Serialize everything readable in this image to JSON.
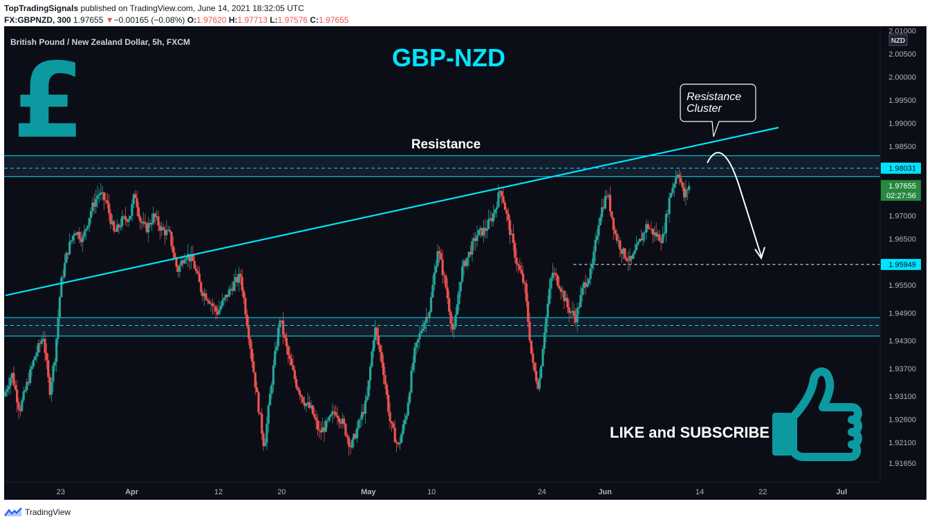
{
  "header": {
    "publisher": "TopTradingSignals",
    "published_text": "published on TradingView.com, June 14, 2021 18:32:05 UTC",
    "symbol": "FX:GBPNZD, 300",
    "last": "1.97655",
    "change_arrow": "▼",
    "change": "−0.00165 (−0.08%)",
    "o_label": "O:",
    "o_val": "1.97620",
    "h_label": "H:",
    "h_val": "1.97713",
    "l_label": "L:",
    "l_val": "1.97576",
    "c_label": "C:",
    "c_val": "1.97655"
  },
  "chart_data": {
    "type": "candlestick",
    "title": "GBP-NZD",
    "subtitle": "British Pound / New Zealand Dollar, 5h, FXCM",
    "currency_badge": "NZD",
    "ylim": [
      1.9125,
      2.011
    ],
    "y_ticks": [
      "2.01000",
      "2.00500",
      "2.00000",
      "1.99500",
      "1.99000",
      "1.98500",
      "1.98031",
      "1.97655",
      "1.97000",
      "1.96500",
      "1.95949",
      "1.95500",
      "1.94900",
      "1.94300",
      "1.93700",
      "1.93100",
      "1.92600",
      "1.92100",
      "1.91650"
    ],
    "y_tick_values": [
      2.01,
      2.005,
      2.0,
      1.995,
      1.99,
      1.985,
      1.98031,
      1.97655,
      1.97,
      1.965,
      1.95949,
      1.955,
      1.949,
      1.943,
      1.937,
      1.931,
      1.926,
      1.921,
      1.9165
    ],
    "x_ticks": [
      "23",
      "Apr",
      "12",
      "20",
      "May",
      "10",
      "24",
      "Jun",
      "14",
      "22",
      "Jul"
    ],
    "x_tick_days": [
      7,
      16,
      27,
      35,
      46,
      54,
      68,
      76,
      88,
      96,
      106
    ],
    "x_range_days": [
      0,
      110
    ],
    "price_path": [
      [
        0.0,
        1.931
      ],
      [
        1.0,
        1.936
      ],
      [
        2.0,
        1.928
      ],
      [
        3.0,
        1.934
      ],
      [
        4.0,
        1.94
      ],
      [
        5.0,
        1.944
      ],
      [
        5.8,
        1.932
      ],
      [
        6.5,
        1.94
      ],
      [
        7.2,
        1.955
      ],
      [
        8.0,
        1.962
      ],
      [
        9.0,
        1.967
      ],
      [
        10.0,
        1.965
      ],
      [
        11.0,
        1.971
      ],
      [
        12.0,
        1.975
      ],
      [
        13.0,
        1.973
      ],
      [
        14.0,
        1.966
      ],
      [
        15.0,
        1.969
      ],
      [
        16.0,
        1.97
      ],
      [
        16.6,
        1.975
      ],
      [
        17.3,
        1.969
      ],
      [
        18.0,
        1.967
      ],
      [
        19.0,
        1.97
      ],
      [
        20.0,
        1.967
      ],
      [
        21.0,
        1.966
      ],
      [
        22.0,
        1.958
      ],
      [
        23.0,
        1.962
      ],
      [
        24.0,
        1.96
      ],
      [
        25.0,
        1.954
      ],
      [
        26.0,
        1.952
      ],
      [
        27.0,
        1.949
      ],
      [
        28.0,
        1.952
      ],
      [
        29.0,
        1.955
      ],
      [
        30.0,
        1.957
      ],
      [
        31.0,
        1.945
      ],
      [
        32.0,
        1.932
      ],
      [
        33.0,
        1.92
      ],
      [
        34.0,
        1.935
      ],
      [
        35.0,
        1.948
      ],
      [
        36.0,
        1.94
      ],
      [
        37.0,
        1.934
      ],
      [
        38.0,
        1.93
      ],
      [
        39.0,
        1.928
      ],
      [
        40.0,
        1.923
      ],
      [
        41.0,
        1.925
      ],
      [
        42.0,
        1.928
      ],
      [
        43.0,
        1.925
      ],
      [
        44.0,
        1.92
      ],
      [
        45.0,
        1.925
      ],
      [
        46.0,
        1.93
      ],
      [
        47.0,
        1.946
      ],
      [
        48.0,
        1.938
      ],
      [
        49.0,
        1.925
      ],
      [
        50.0,
        1.92
      ],
      [
        51.0,
        1.927
      ],
      [
        52.0,
        1.94
      ],
      [
        53.0,
        1.946
      ],
      [
        54.0,
        1.95
      ],
      [
        55.0,
        1.963
      ],
      [
        56.0,
        1.955
      ],
      [
        57.0,
        1.944
      ],
      [
        58.0,
        1.958
      ],
      [
        59.0,
        1.962
      ],
      [
        60.0,
        1.966
      ],
      [
        61.0,
        1.967
      ],
      [
        62.0,
        1.97
      ],
      [
        63.0,
        1.976
      ],
      [
        64.0,
        1.968
      ],
      [
        65.0,
        1.96
      ],
      [
        66.0,
        1.955
      ],
      [
        67.0,
        1.938
      ],
      [
        67.8,
        1.933
      ],
      [
        68.5,
        1.945
      ],
      [
        69.5,
        1.958
      ],
      [
        70.5,
        1.955
      ],
      [
        71.5,
        1.95
      ],
      [
        72.5,
        1.948
      ],
      [
        73.5,
        1.955
      ],
      [
        74.5,
        1.958
      ],
      [
        75.5,
        1.97
      ],
      [
        76.5,
        1.975
      ],
      [
        77.5,
        1.966
      ],
      [
        78.5,
        1.962
      ],
      [
        79.5,
        1.96
      ],
      [
        80.5,
        1.964
      ],
      [
        81.5,
        1.968
      ],
      [
        82.5,
        1.966
      ],
      [
        83.5,
        1.965
      ],
      [
        84.5,
        1.975
      ],
      [
        85.5,
        1.98
      ],
      [
        86.2,
        1.974
      ],
      [
        86.8,
        1.9765
      ]
    ],
    "annotations": {
      "resistance_label": "Resistance",
      "callout": [
        "Resistance",
        "Cluster"
      ],
      "cta": "LIKE and SUBSCRIBE",
      "pound_symbol": "£"
    },
    "levels": {
      "resistance_zone": [
        1.9785,
        1.983
      ],
      "support_zone": [
        1.944,
        1.948
      ],
      "dashed_resistance": 1.98031,
      "dashed_support": 1.9463,
      "dashed_target": 1.95949
    },
    "trendline": {
      "from": [
        0.0,
        1.9528
      ],
      "to": [
        98.0,
        1.9891
      ]
    },
    "price_label": "1.97655",
    "countdown": "02:27:56",
    "target_label": "1.95949",
    "resistance_label_value": "1.98031",
    "colors": {
      "background": "#0b0e17",
      "up": "#26a69a",
      "down": "#ef5350",
      "cyan": "#00e5ff",
      "teal_icon": "#0c9aa0",
      "price_label_bg": "#26893f"
    }
  },
  "footer": {
    "brand": "TradingView"
  }
}
